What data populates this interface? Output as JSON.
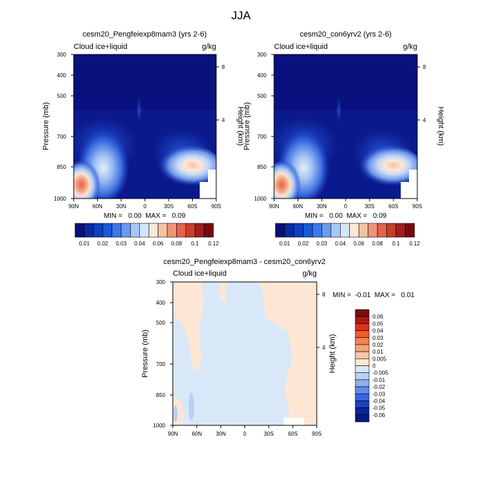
{
  "figure_title": "JJA",
  "panels": [
    {
      "title": "cesm20_Pengfeiexp8mam3 (yrs 2-6)",
      "left_label": "Cloud ice+liquid",
      "right_label": "g/kg",
      "stats": "MIN =   0.00  MAX =   0.09"
    },
    {
      "title": "cesm20_con6yrv2 (yrs 2-6)",
      "left_label": "Cloud ice+liquid",
      "right_label": "g/kg",
      "stats": "MIN =   0.00  MAX =   0.09"
    },
    {
      "title": "cesm20_Pengfeiexp8mam3 - cesm20_con6yrv2",
      "left_label": "Cloud ice+liquid",
      "right_label": "g/kg",
      "stats": "MIN =  -0.01  MAX =   0.01"
    }
  ],
  "axes": {
    "ylabel": "Pressure (mb)",
    "ylabel_right": "Height (km)",
    "pressure_ticks": [
      "300",
      "400",
      "500",
      "700",
      "850",
      "1000"
    ],
    "height_ticks": [
      "8",
      "4"
    ],
    "lat_ticks": [
      "90N",
      "60N",
      "30N",
      "0",
      "30S",
      "60S",
      "90S"
    ]
  },
  "colorbar_main": {
    "labels": [
      "0.01",
      "0.02",
      "0.03",
      "0.04",
      "0.06",
      "0.08",
      "0.1",
      "0.12"
    ],
    "colors": [
      "#08107a",
      "#0a2aa0",
      "#0c40c0",
      "#1a58d8",
      "#3a78e8",
      "#6a9cf0",
      "#a8c6f6",
      "#d6e6fa",
      "#fde8d6",
      "#f8c2a2",
      "#f0947a",
      "#e4644c",
      "#c83c2c",
      "#a01e1c",
      "#780a0e"
    ]
  },
  "colorbar_diff": {
    "labels": [
      "0.06",
      "0.05",
      "0.04",
      "0.03",
      "0.02",
      "0.01",
      "0.005",
      "0",
      "-0.005",
      "-0.01",
      "-0.02",
      "-0.03",
      "-0.04",
      "-0.05",
      "-0.06"
    ],
    "colors": [
      "#7a0c0c",
      "#b01818",
      "#dc3218",
      "#f25a2a",
      "#f7804e",
      "#f8a27a",
      "#fac7aa",
      "#fde6d4",
      "#d8e8f8",
      "#b8d0f4",
      "#8cb0ee",
      "#5e8ce8",
      "#3866dc",
      "#1c40c4",
      "#0c249e",
      "#0a1682"
    ]
  },
  "chart_data": [
    {
      "type": "heatmap",
      "title": "cesm20_Pengfeiexp8mam3 (yrs 2-6)",
      "variable": "Cloud ice+liquid",
      "units": "g/kg",
      "ylabel": "Pressure (mb)",
      "xlim": [
        "90N",
        "90S"
      ],
      "ylim": [
        1000,
        300
      ],
      "min": 0.0,
      "max": 0.09,
      "features": [
        {
          "lat": "80N",
          "pressure": 950,
          "value": 0.09
        },
        {
          "lat": "60N",
          "pressure": 850,
          "value": 0.04
        },
        {
          "lat": "45S",
          "pressure": 850,
          "value": 0.06
        }
      ]
    },
    {
      "type": "heatmap",
      "title": "cesm20_con6yrv2 (yrs 2-6)",
      "variable": "Cloud ice+liquid",
      "units": "g/kg",
      "ylabel": "Pressure (mb)",
      "xlim": [
        "90N",
        "90S"
      ],
      "ylim": [
        1000,
        300
      ],
      "min": 0.0,
      "max": 0.09,
      "features": [
        {
          "lat": "80N",
          "pressure": 950,
          "value": 0.09
        },
        {
          "lat": "60N",
          "pressure": 850,
          "value": 0.04
        },
        {
          "lat": "45S",
          "pressure": 850,
          "value": 0.06
        }
      ]
    },
    {
      "type": "heatmap",
      "title": "cesm20_Pengfeiexp8mam3 - cesm20_con6yrv2",
      "variable": "Cloud ice+liquid",
      "units": "g/kg",
      "ylabel": "Pressure (mb)",
      "xlim": [
        "90N",
        "90S"
      ],
      "ylim": [
        1000,
        300
      ],
      "min": -0.01,
      "max": 0.01
    }
  ]
}
